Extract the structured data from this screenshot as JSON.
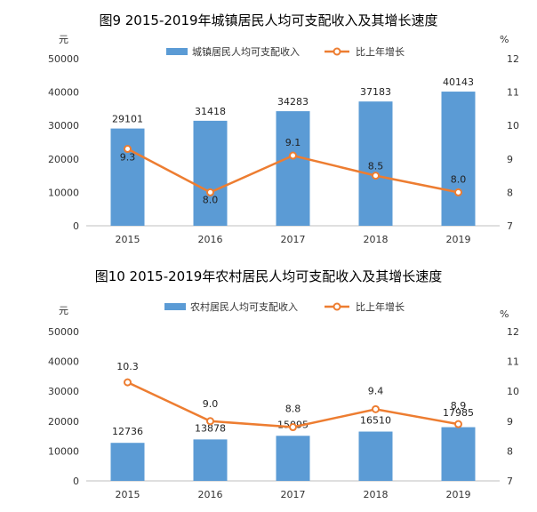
{
  "chart_data": [
    {
      "type": "bar",
      "title": "图9   2015-2019年城镇居民人均可支配收入及其增长速度",
      "y_unit_left": "元",
      "y_unit_right": "%",
      "categories": [
        "2015",
        "2016",
        "2017",
        "2018",
        "2019"
      ],
      "left_ticks": [
        "0",
        "10000",
        "20000",
        "30000",
        "40000",
        "50000"
      ],
      "right_ticks": [
        "7",
        "8",
        "9",
        "10",
        "11",
        "12"
      ],
      "ylim_left": [
        0,
        50000
      ],
      "ylim_right": [
        7,
        12
      ],
      "series": [
        {
          "name": "城镇居民人均可支配收入",
          "kind": "bar",
          "axis": "left",
          "color": "#5b9bd5",
          "values": [
            29101,
            31418,
            34283,
            37183,
            40143
          ],
          "labels": [
            "29101",
            "31418",
            "34283",
            "37183",
            "40143"
          ]
        },
        {
          "name": "比上年增长",
          "kind": "line",
          "axis": "right",
          "color": "#ed7d31",
          "values": [
            9.3,
            8.0,
            9.1,
            8.5,
            8.0
          ],
          "labels": [
            "9.3",
            "8.0",
            "9.1",
            "8.5",
            "8.0"
          ]
        }
      ]
    },
    {
      "type": "bar",
      "title": "图10   2015-2019年农村居民人均可支配收入及其增长速度",
      "y_unit_left": "元",
      "y_unit_right": "%",
      "categories": [
        "2015",
        "2016",
        "2017",
        "2018",
        "2019"
      ],
      "left_ticks": [
        "0",
        "10000",
        "20000",
        "30000",
        "40000",
        "50000"
      ],
      "right_ticks": [
        "7",
        "8",
        "9",
        "10",
        "11",
        "12"
      ],
      "ylim_left": [
        0,
        50000
      ],
      "ylim_right": [
        7,
        12
      ],
      "series": [
        {
          "name": "农村居民人均可支配收入",
          "kind": "bar",
          "axis": "left",
          "color": "#5b9bd5",
          "values": [
            12736,
            13878,
            15095,
            16510,
            17985
          ],
          "labels": [
            "12736",
            "13878",
            "15095",
            "16510",
            "17985"
          ]
        },
        {
          "name": "比上年增长",
          "kind": "line",
          "axis": "right",
          "color": "#ed7d31",
          "values": [
            10.3,
            9.0,
            8.8,
            9.4,
            8.9
          ],
          "labels": [
            "10.3",
            "9.0",
            "8.8",
            "9.4",
            "8.9"
          ]
        }
      ]
    }
  ]
}
